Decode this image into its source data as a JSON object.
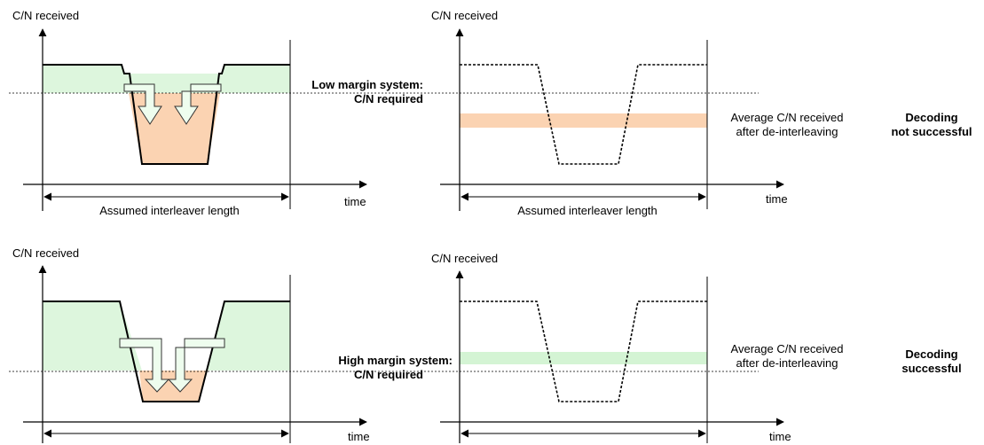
{
  "colors": {
    "margin_fill": "#ddf6dd",
    "deficit_fill": "#fbd3b2",
    "avg_low_band": "#fbd3b2",
    "avg_high_band": "#d4f4d4",
    "arrow_fill": "#eefdee",
    "arrow_stroke": "#333333"
  },
  "rows": [
    {
      "system_line1": "Low margin system:",
      "system_line2": "C/N required",
      "left": {
        "ylabel": "C/N received",
        "xlabel": "time",
        "span_label": "Assumed interleaver length"
      },
      "right": {
        "ylabel": "C/N received",
        "xlabel": "time",
        "span_label": "Assumed interleaver length",
        "avg_line1": "Average C/N received",
        "avg_line2": "after de-interleaving"
      },
      "result_line1": "Decoding",
      "result_line2": "not successful"
    },
    {
      "system_line1": "High margin system:",
      "system_line2": "C/N required",
      "left": {
        "ylabel": "C/N received",
        "xlabel": "time"
      },
      "right": {
        "ylabel": "C/N received",
        "xlabel": "time",
        "avg_line1": "Average C/N received",
        "avg_line2": "after de-interleaving"
      },
      "result_line1": "Decoding",
      "result_line2": "successful"
    }
  ]
}
